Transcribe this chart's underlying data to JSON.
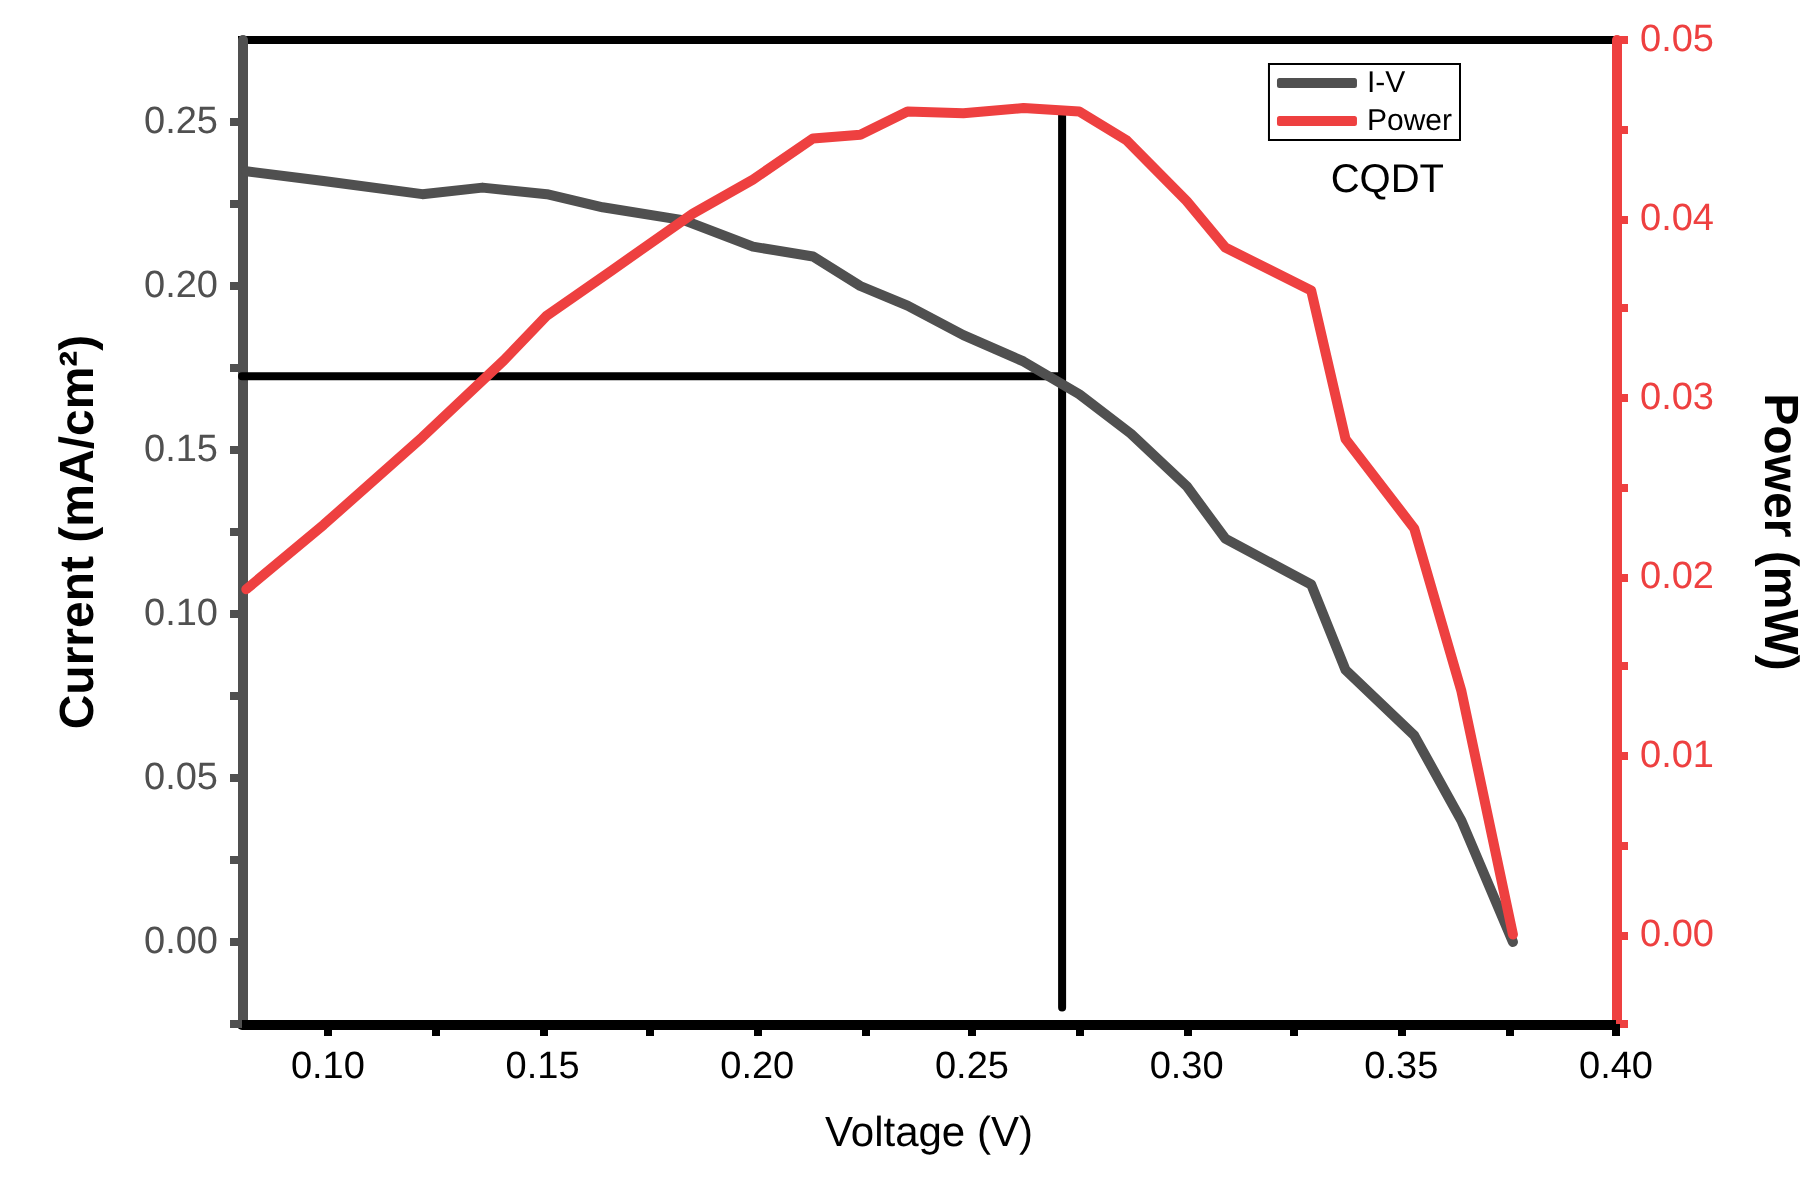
{
  "chart_data": {
    "type": "line",
    "xlabel": "Voltage (V)",
    "ylabel": "Current (mA/cm²)",
    "y2label": "Power (mW)",
    "annotations": [
      "CQDT"
    ],
    "x": [
      0.081,
      0.099,
      0.122,
      0.136,
      0.151,
      0.164,
      0.183,
      0.199,
      0.213,
      0.224,
      0.235,
      0.248,
      0.262,
      0.275,
      0.287,
      0.3,
      0.309,
      0.329,
      0.337,
      0.353,
      0.364,
      0.376
    ],
    "series": [
      {
        "name": "I-V",
        "color": "#505050",
        "values": [
          0.235,
          0.232,
          0.228,
          0.23,
          0.228,
          0.224,
          0.22,
          0.212,
          0.209,
          0.2,
          0.194,
          0.185,
          0.177,
          0.167,
          0.155,
          0.139,
          0.123,
          0.109,
          0.083,
          0.063,
          0.037,
          0.0
        ]
      },
      {
        "name": "Power",
        "color": "#ee4040",
        "axis": "y2",
        "x": [
          0.081,
          0.099,
          0.122,
          0.141,
          0.151,
          0.166,
          0.185,
          0.199,
          0.213,
          0.224,
          0.235,
          0.248,
          0.262,
          0.275,
          0.286,
          0.3,
          0.309,
          0.329,
          0.337,
          0.353,
          0.364,
          0.376
        ],
        "values": [
          0.0193,
          0.0229,
          0.0278,
          0.0321,
          0.0346,
          0.0371,
          0.0403,
          0.0422,
          0.0445,
          0.0447,
          0.046,
          0.0459,
          0.0462,
          0.046,
          0.0444,
          0.041,
          0.0384,
          0.036,
          0.0277,
          0.0227,
          0.0136,
          0.0
        ]
      },
      {
        "color": "#000000",
        "x": [
          0.08,
          0.271,
          0.271,
          0.271
        ],
        "values": [
          0.1725,
          0.1725,
          0.252,
          -0.02
        ]
      }
    ],
    "xlim": [
      0.08,
      0.4
    ],
    "xticks": [
      {
        "value": 0.1,
        "label": "0.10"
      },
      {
        "value": 0.125,
        "label": null
      },
      {
        "value": 0.15,
        "label": "0.15"
      },
      {
        "value": 0.175,
        "label": null
      },
      {
        "value": 0.2,
        "label": "0.20"
      },
      {
        "value": 0.225,
        "label": null
      },
      {
        "value": 0.25,
        "label": "0.25"
      },
      {
        "value": 0.275,
        "label": null
      },
      {
        "value": 0.3,
        "label": "0.30"
      },
      {
        "value": 0.325,
        "label": null
      },
      {
        "value": 0.35,
        "label": "0.35"
      },
      {
        "value": 0.375,
        "label": null
      },
      {
        "value": 0.4,
        "label": "0.40"
      }
    ],
    "ylim": [
      -0.025,
      0.275
    ],
    "yticks": [
      {
        "value": -0.025,
        "label": null
      },
      {
        "value": 0,
        "label": "0.00"
      },
      {
        "value": 0.025,
        "label": null
      },
      {
        "value": 0.05,
        "label": "0.05"
      },
      {
        "value": 0.075,
        "label": null
      },
      {
        "value": 0.1,
        "label": "0.10"
      },
      {
        "value": 0.125,
        "label": null
      },
      {
        "value": 0.15,
        "label": "0.15"
      },
      {
        "value": 0.175,
        "label": null
      },
      {
        "value": 0.2,
        "label": "0.20"
      },
      {
        "value": 0.225,
        "label": null
      },
      {
        "value": 0.25,
        "label": "0.25"
      }
    ],
    "y2lim": [
      -0.005,
      0.05
    ],
    "y2ticks": [
      {
        "value": -0.005,
        "label": null
      },
      {
        "value": 0,
        "label": "0.00"
      },
      {
        "value": 0.005,
        "label": null
      },
      {
        "value": 0.01,
        "label": "0.01"
      },
      {
        "value": 0.015,
        "label": null
      },
      {
        "value": 0.02,
        "label": "0.02"
      },
      {
        "value": 0.025,
        "label": null
      },
      {
        "value": 0.03,
        "label": "0.03"
      },
      {
        "value": 0.035,
        "label": null
      },
      {
        "value": 0.04,
        "label": "0.04"
      },
      {
        "value": 0.045,
        "label": null
      },
      {
        "value": 0.05,
        "label": "0.05"
      }
    ],
    "grid": false,
    "legend": "top right",
    "marker": "none",
    "line_style": "solid"
  }
}
